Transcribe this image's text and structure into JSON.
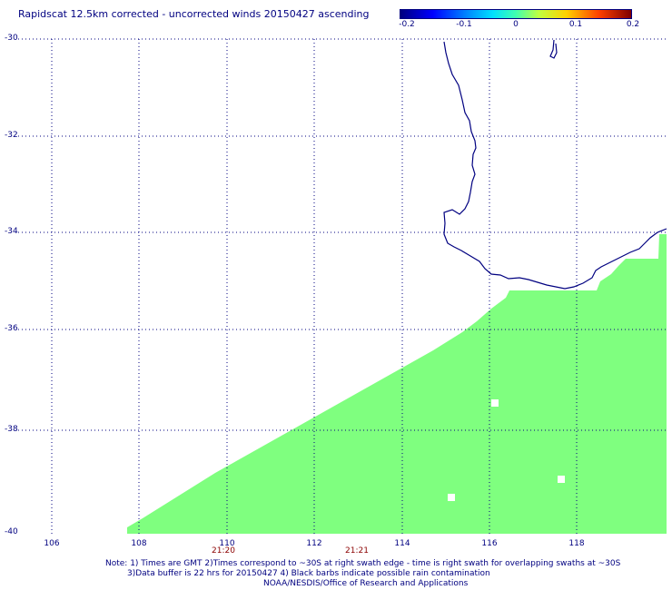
{
  "title": "Rapidscat 12.5km corrected - uncorrected winds 20150427 ascending",
  "colorbar": {
    "labels": [
      "-0.2",
      "-0.1",
      "0",
      "0.1",
      "0.2"
    ]
  },
  "lat_labels": [
    "-30",
    "-32",
    "-34",
    "-36",
    "-38",
    "-40"
  ],
  "lon_labels": [
    "106",
    "108",
    "110",
    "112",
    "114",
    "116",
    "118"
  ],
  "time_labels": [
    "21:20",
    "21:21"
  ],
  "notes": [
    "Note: 1) Times are GMT 2)Times correspond to ~30S at right swath edge - time is right swath for overlapping swaths at ~30S",
    "3)Data buffer is 22 hrs for 20150427 4) Black barbs indicate possible rain contamination",
    "NOAA/NESDIS/Office of Research and Applications"
  ],
  "colors": {
    "swath": "#7fff7f",
    "coast": "#000080",
    "grid": "#000080",
    "time_label": "#8b0000"
  }
}
